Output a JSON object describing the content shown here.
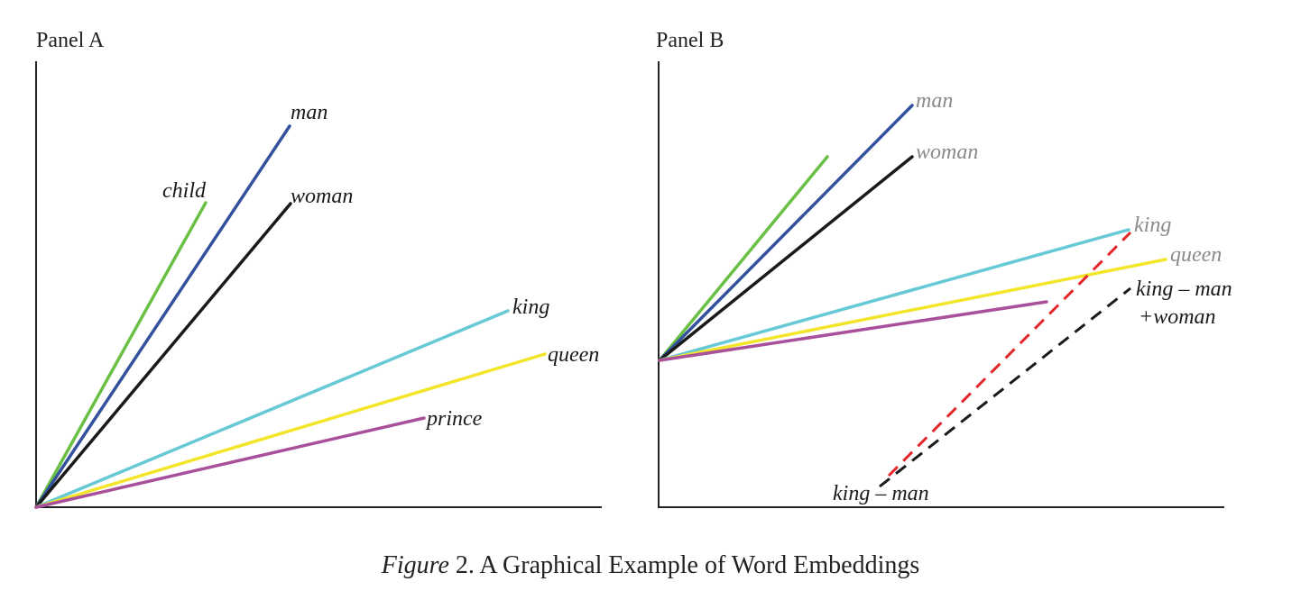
{
  "panels": [
    {
      "title": "Panel A",
      "vectors": [
        {
          "label": "child",
          "color": "#6abf45"
        },
        {
          "label": "man",
          "color": "#34519e"
        },
        {
          "label": "woman",
          "color": "#1a1a1a"
        },
        {
          "label": "king",
          "color": "#67c9d6"
        },
        {
          "label": "queen",
          "color": "#f2e52a"
        },
        {
          "label": "prince",
          "color": "#a9509b"
        }
      ]
    },
    {
      "title": "Panel B",
      "vectors": [
        {
          "label": "",
          "color": "#6abf45"
        },
        {
          "label": "man",
          "color": "#34519e"
        },
        {
          "label": "woman",
          "color": "#1a1a1a"
        },
        {
          "label": "king",
          "color": "#67c9d6"
        },
        {
          "label": "queen",
          "color": "#f2e52a"
        },
        {
          "label": "",
          "color": "#a9509b"
        }
      ],
      "derived": [
        {
          "label": "king – man",
          "color": "#e32629"
        },
        {
          "label_line1": "king – man",
          "label_line2": "+woman",
          "color": "#1a1a1a"
        }
      ]
    }
  ],
  "caption": {
    "italic": "Figure",
    "rest": " 2. A Graphical Example of Word Embeddings"
  }
}
